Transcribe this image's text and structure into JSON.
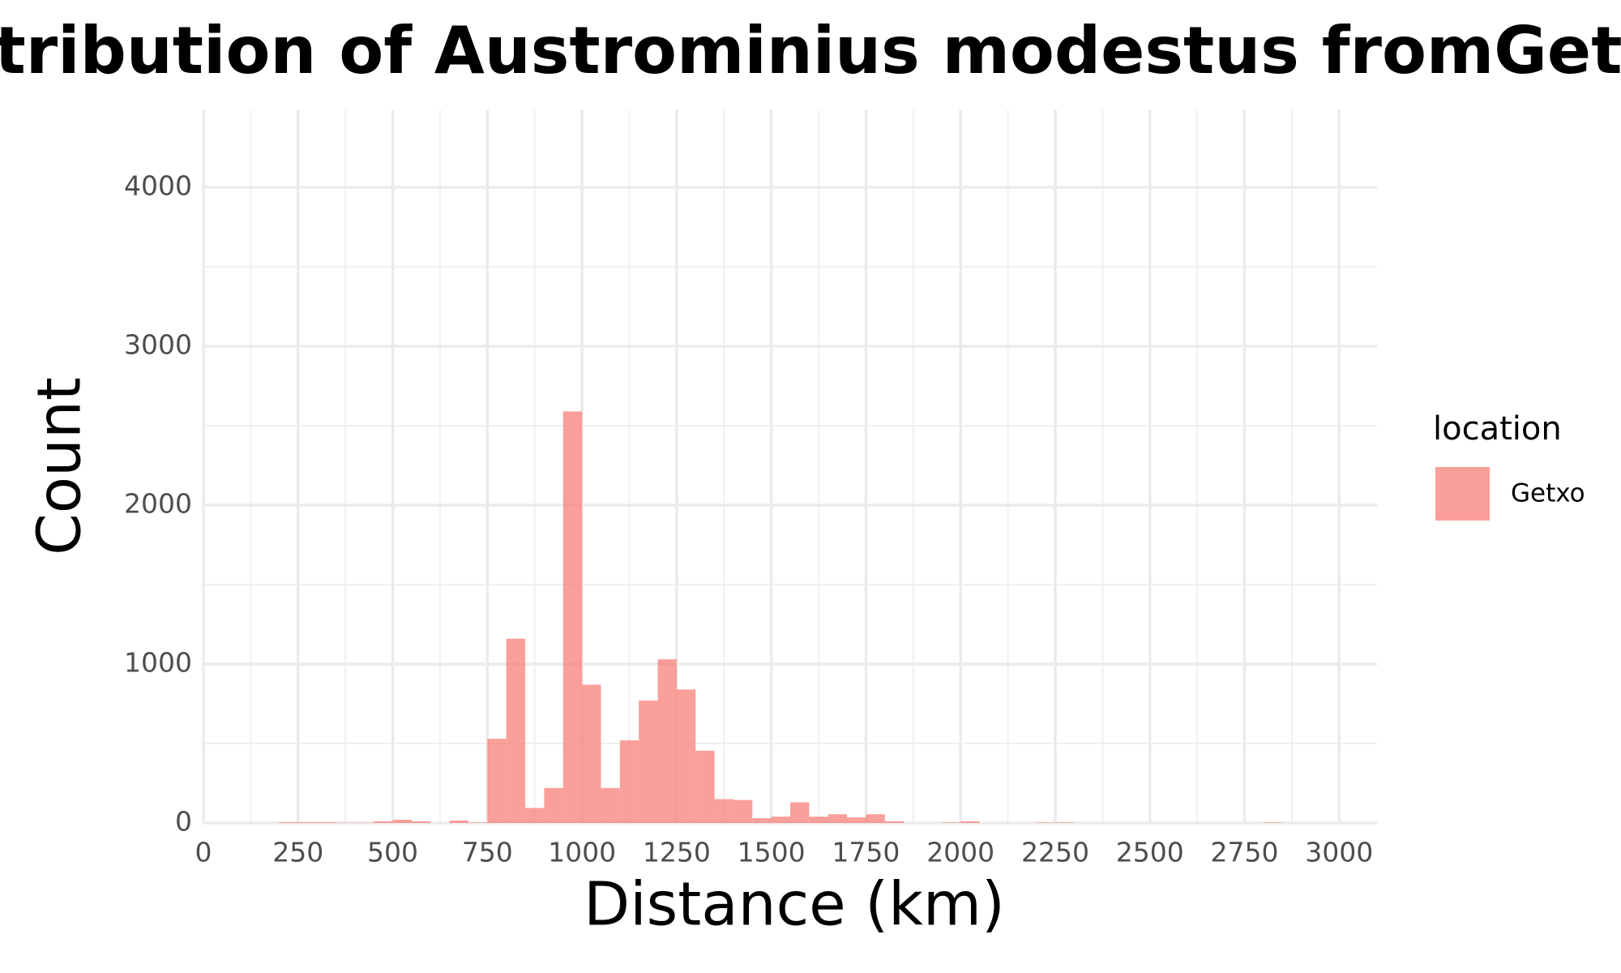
{
  "chart_data": {
    "type": "histogram",
    "title": "Distribution of Austrominius modestus fromGetxo",
    "x_label": "Distance (km)",
    "y_label": "Count",
    "legend_title": "location",
    "series": [
      {
        "name": "Getxo",
        "color": "#f8766d",
        "bins": [
          200,
          250,
          300,
          350,
          400,
          450,
          500,
          550,
          600,
          650,
          700,
          750,
          800,
          850,
          900,
          950,
          1000,
          1050,
          1100,
          1150,
          1200,
          1250,
          1300,
          1350,
          1400,
          1450,
          1500,
          1550,
          1600,
          1650,
          1700,
          1750,
          1800,
          1850,
          1900,
          1950,
          2000,
          2050,
          2100,
          2150,
          2200,
          2250,
          2300,
          2350,
          2400,
          2450,
          2500,
          2550,
          2600,
          2650,
          2700,
          2750,
          2800,
          2850
        ],
        "counts": [
          5,
          5,
          5,
          2,
          2,
          10,
          20,
          10,
          0,
          15,
          3,
          530,
          1160,
          95,
          220,
          2590,
          870,
          220,
          520,
          770,
          1030,
          840,
          455,
          150,
          145,
          30,
          40,
          130,
          40,
          55,
          35,
          55,
          10,
          0,
          0,
          3,
          10,
          0,
          0,
          0,
          3,
          3,
          0,
          0,
          0,
          0,
          0,
          0,
          0,
          0,
          0,
          0,
          3
        ]
      }
    ],
    "xlim": [
      0,
      3100
    ],
    "xticks": [
      0,
      250,
      500,
      750,
      1000,
      1250,
      1500,
      1750,
      2000,
      2250,
      2500,
      2750,
      3000
    ],
    "ylim": [
      0,
      4490
    ],
    "yticks": [
      0,
      1000,
      2000,
      3000,
      4000
    ],
    "grid": true,
    "legend_position": "right"
  }
}
